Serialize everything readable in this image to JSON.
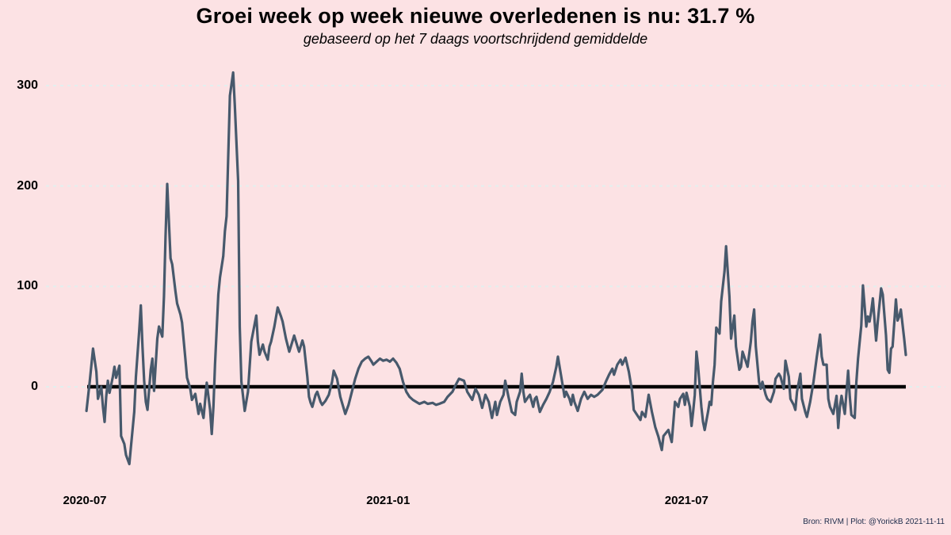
{
  "title": "Groei week op week nieuwe overledenen is nu:  31.7 %",
  "subtitle": "gebaseerd op het 7 daags voortschrijdend gemiddelde",
  "attribution": "Bron: RIVM | Plot: @YorickB  2021-11-11",
  "colors": {
    "background": "#fce2e4",
    "line": "#47596c",
    "grid": "#e3efee",
    "zero_line": "#000000",
    "text": "#000000",
    "attribution_text": "#1c2b4a"
  },
  "chart_data": {
    "type": "line",
    "title": "Groei week op week nieuwe overledenen is nu:  31.7 %",
    "subtitle": "gebaseerd op het 7 daags voortschrijdend gemiddelde",
    "current_value_pct": 31.7,
    "legend": "none",
    "grid": "horizontal-dashed",
    "zero_line": true,
    "x_axis": {
      "start_date": "2020-07-01",
      "end_date": "2021-11-11",
      "domain_days": [
        0,
        498
      ],
      "ticks": [
        {
          "day": 0,
          "label": "2020-07"
        },
        {
          "day": 184,
          "label": "2021-01"
        },
        {
          "day": 365,
          "label": "2021-07"
        }
      ]
    },
    "y_axis": {
      "range": [
        -90,
        325
      ],
      "ticks": [
        {
          "value": 300,
          "label": "300"
        },
        {
          "value": 200,
          "label": "200"
        },
        {
          "value": 100,
          "label": "100"
        },
        {
          "value": 0,
          "label": "0"
        }
      ]
    },
    "series": [
      {
        "name": "groei week op week nieuwe overledenen (%)",
        "points": [
          [
            1,
            -24
          ],
          [
            3,
            5
          ],
          [
            5,
            38
          ],
          [
            7,
            15
          ],
          [
            8,
            -12
          ],
          [
            10,
            0
          ],
          [
            11,
            -20
          ],
          [
            12,
            -35
          ],
          [
            13,
            -10
          ],
          [
            14,
            6
          ],
          [
            15,
            -6
          ],
          [
            17,
            10
          ],
          [
            18,
            20
          ],
          [
            19,
            9
          ],
          [
            21,
            21
          ],
          [
            22,
            -49
          ],
          [
            24,
            -57
          ],
          [
            25,
            -68
          ],
          [
            27,
            -77
          ],
          [
            28,
            -60
          ],
          [
            30,
            -25
          ],
          [
            31,
            10
          ],
          [
            33,
            55
          ],
          [
            34,
            81
          ],
          [
            35,
            40
          ],
          [
            36,
            6
          ],
          [
            37,
            -15
          ],
          [
            38,
            -23
          ],
          [
            40,
            17
          ],
          [
            41,
            28
          ],
          [
            42,
            -4
          ],
          [
            44,
            48
          ],
          [
            45,
            60
          ],
          [
            47,
            50
          ],
          [
            48,
            90
          ],
          [
            49,
            150
          ],
          [
            50,
            202
          ],
          [
            52,
            128
          ],
          [
            53,
            122
          ],
          [
            55,
            95
          ],
          [
            56,
            83
          ],
          [
            58,
            72
          ],
          [
            59,
            64
          ],
          [
            61,
            28
          ],
          [
            62,
            9
          ],
          [
            64,
            -2
          ],
          [
            65,
            -13
          ],
          [
            67,
            -7
          ],
          [
            69,
            -27
          ],
          [
            70,
            -17
          ],
          [
            72,
            -31
          ],
          [
            74,
            4
          ],
          [
            76,
            -23
          ],
          [
            77,
            -47
          ],
          [
            78,
            -20
          ],
          [
            79,
            22
          ],
          [
            81,
            92
          ],
          [
            82,
            109
          ],
          [
            84,
            130
          ],
          [
            85,
            155
          ],
          [
            86,
            170
          ],
          [
            88,
            290
          ],
          [
            90,
            313
          ],
          [
            91,
            280
          ],
          [
            93,
            205
          ],
          [
            94,
            60
          ],
          [
            95,
            5
          ],
          [
            97,
            -24
          ],
          [
            99,
            -5
          ],
          [
            100,
            20
          ],
          [
            101,
            45
          ],
          [
            104,
            71
          ],
          [
            105,
            45
          ],
          [
            106,
            32
          ],
          [
            108,
            42
          ],
          [
            109,
            35
          ],
          [
            111,
            27
          ],
          [
            112,
            40
          ],
          [
            113,
            45
          ],
          [
            115,
            60
          ],
          [
            117,
            79
          ],
          [
            119,
            70
          ],
          [
            120,
            65
          ],
          [
            122,
            48
          ],
          [
            124,
            35
          ],
          [
            125,
            40
          ],
          [
            127,
            51
          ],
          [
            129,
            40
          ],
          [
            130,
            35
          ],
          [
            132,
            46
          ],
          [
            133,
            40
          ],
          [
            135,
            10
          ],
          [
            136,
            -10
          ],
          [
            137,
            -16
          ],
          [
            138,
            -20
          ],
          [
            140,
            -8
          ],
          [
            141,
            -5
          ],
          [
            143,
            -15
          ],
          [
            144,
            -18
          ],
          [
            146,
            -14
          ],
          [
            148,
            -8
          ],
          [
            150,
            5
          ],
          [
            151,
            16
          ],
          [
            153,
            8
          ],
          [
            155,
            -10
          ],
          [
            158,
            -27
          ],
          [
            160,
            -18
          ],
          [
            162,
            -5
          ],
          [
            164,
            8
          ],
          [
            166,
            18
          ],
          [
            168,
            25
          ],
          [
            170,
            28
          ],
          [
            172,
            30
          ],
          [
            174,
            25
          ],
          [
            175,
            22
          ],
          [
            177,
            25
          ],
          [
            179,
            28
          ],
          [
            181,
            26
          ],
          [
            183,
            27
          ],
          [
            185,
            25
          ],
          [
            187,
            28
          ],
          [
            189,
            24
          ],
          [
            191,
            18
          ],
          [
            193,
            5
          ],
          [
            195,
            -5
          ],
          [
            197,
            -10
          ],
          [
            199,
            -13
          ],
          [
            201,
            -15
          ],
          [
            203,
            -17
          ],
          [
            206,
            -15
          ],
          [
            208,
            -17
          ],
          [
            211,
            -16
          ],
          [
            213,
            -18
          ],
          [
            215,
            -17
          ],
          [
            218,
            -15
          ],
          [
            220,
            -10
          ],
          [
            223,
            -5
          ],
          [
            225,
            2
          ],
          [
            227,
            8
          ],
          [
            230,
            6
          ],
          [
            232,
            -5
          ],
          [
            235,
            -13
          ],
          [
            237,
            -2
          ],
          [
            239,
            -8
          ],
          [
            241,
            -21
          ],
          [
            243,
            -8
          ],
          [
            245,
            -15
          ],
          [
            247,
            -31
          ],
          [
            249,
            -15
          ],
          [
            250,
            -28
          ],
          [
            252,
            -15
          ],
          [
            254,
            -8
          ],
          [
            255,
            6
          ],
          [
            257,
            -10
          ],
          [
            259,
            -25
          ],
          [
            261,
            -28
          ],
          [
            262,
            -15
          ],
          [
            264,
            -5
          ],
          [
            265,
            13
          ],
          [
            266,
            -5
          ],
          [
            267,
            -15
          ],
          [
            269,
            -10
          ],
          [
            270,
            -8
          ],
          [
            272,
            -20
          ],
          [
            273,
            -12
          ],
          [
            274,
            -10
          ],
          [
            276,
            -25
          ],
          [
            278,
            -18
          ],
          [
            280,
            -12
          ],
          [
            282,
            -5
          ],
          [
            284,
            5
          ],
          [
            286,
            20
          ],
          [
            287,
            30
          ],
          [
            289,
            10
          ],
          [
            291,
            -10
          ],
          [
            292,
            -5
          ],
          [
            294,
            -12
          ],
          [
            295,
            -18
          ],
          [
            296,
            -8
          ],
          [
            297,
            -15
          ],
          [
            299,
            -24
          ],
          [
            301,
            -12
          ],
          [
            303,
            -5
          ],
          [
            305,
            -12
          ],
          [
            307,
            -8
          ],
          [
            309,
            -10
          ],
          [
            311,
            -8
          ],
          [
            314,
            -3
          ],
          [
            316,
            5
          ],
          [
            318,
            12
          ],
          [
            320,
            18
          ],
          [
            321,
            12
          ],
          [
            323,
            22
          ],
          [
            325,
            27
          ],
          [
            326,
            22
          ],
          [
            328,
            29
          ],
          [
            330,
            15
          ],
          [
            332,
            -5
          ],
          [
            333,
            -23
          ],
          [
            335,
            -28
          ],
          [
            337,
            -33
          ],
          [
            338,
            -25
          ],
          [
            340,
            -30
          ],
          [
            342,
            -8
          ],
          [
            344,
            -25
          ],
          [
            346,
            -40
          ],
          [
            348,
            -50
          ],
          [
            350,
            -63
          ],
          [
            351,
            -49
          ],
          [
            353,
            -45
          ],
          [
            354,
            -43
          ],
          [
            356,
            -55
          ],
          [
            357,
            -35
          ],
          [
            358,
            -15
          ],
          [
            360,
            -20
          ],
          [
            361,
            -12
          ],
          [
            363,
            -7
          ],
          [
            364,
            -18
          ],
          [
            365,
            -6
          ],
          [
            367,
            -20
          ],
          [
            368,
            -39
          ],
          [
            369,
            -25
          ],
          [
            370,
            -8
          ],
          [
            371,
            35
          ],
          [
            372,
            20
          ],
          [
            374,
            -20
          ],
          [
            375,
            -35
          ],
          [
            376,
            -43
          ],
          [
            378,
            -25
          ],
          [
            379,
            -15
          ],
          [
            380,
            -18
          ],
          [
            381,
            5
          ],
          [
            382,
            22
          ],
          [
            383,
            59
          ],
          [
            385,
            53
          ],
          [
            386,
            85
          ],
          [
            388,
            115
          ],
          [
            389,
            140
          ],
          [
            391,
            90
          ],
          [
            392,
            48
          ],
          [
            393,
            60
          ],
          [
            394,
            71
          ],
          [
            395,
            40
          ],
          [
            397,
            17
          ],
          [
            398,
            20
          ],
          [
            399,
            35
          ],
          [
            401,
            25
          ],
          [
            402,
            20
          ],
          [
            404,
            45
          ],
          [
            405,
            65
          ],
          [
            406,
            77
          ],
          [
            407,
            40
          ],
          [
            409,
            5
          ],
          [
            410,
            -2
          ],
          [
            411,
            5
          ],
          [
            413,
            -8
          ],
          [
            414,
            -12
          ],
          [
            416,
            -15
          ],
          [
            418,
            -5
          ],
          [
            419,
            8
          ],
          [
            421,
            13
          ],
          [
            422,
            10
          ],
          [
            424,
            -2
          ],
          [
            425,
            26
          ],
          [
            427,
            10
          ],
          [
            428,
            -12
          ],
          [
            430,
            -18
          ],
          [
            431,
            -23
          ],
          [
            432,
            -5
          ],
          [
            434,
            13
          ],
          [
            435,
            -12
          ],
          [
            437,
            -25
          ],
          [
            438,
            -30
          ],
          [
            440,
            -15
          ],
          [
            442,
            5
          ],
          [
            444,
            30
          ],
          [
            446,
            52
          ],
          [
            447,
            30
          ],
          [
            448,
            22
          ],
          [
            450,
            22
          ],
          [
            451,
            -12
          ],
          [
            452,
            -20
          ],
          [
            454,
            -27
          ],
          [
            456,
            -9
          ],
          [
            457,
            -41
          ],
          [
            458,
            -20
          ],
          [
            459,
            -9
          ],
          [
            461,
            -27
          ],
          [
            463,
            16
          ],
          [
            464,
            -10
          ],
          [
            465,
            -28
          ],
          [
            467,
            -31
          ],
          [
            468,
            5
          ],
          [
            469,
            28
          ],
          [
            471,
            61
          ],
          [
            472,
            101
          ],
          [
            474,
            60
          ],
          [
            475,
            70
          ],
          [
            476,
            65
          ],
          [
            477,
            75
          ],
          [
            478,
            88
          ],
          [
            480,
            46
          ],
          [
            481,
            65
          ],
          [
            483,
            98
          ],
          [
            484,
            92
          ],
          [
            486,
            51
          ],
          [
            487,
            17
          ],
          [
            488,
            14
          ],
          [
            489,
            38
          ],
          [
            490,
            40
          ],
          [
            492,
            87
          ],
          [
            493,
            66
          ],
          [
            494,
            70
          ],
          [
            495,
            77
          ],
          [
            497,
            48
          ],
          [
            498,
            31.7
          ]
        ]
      }
    ]
  }
}
